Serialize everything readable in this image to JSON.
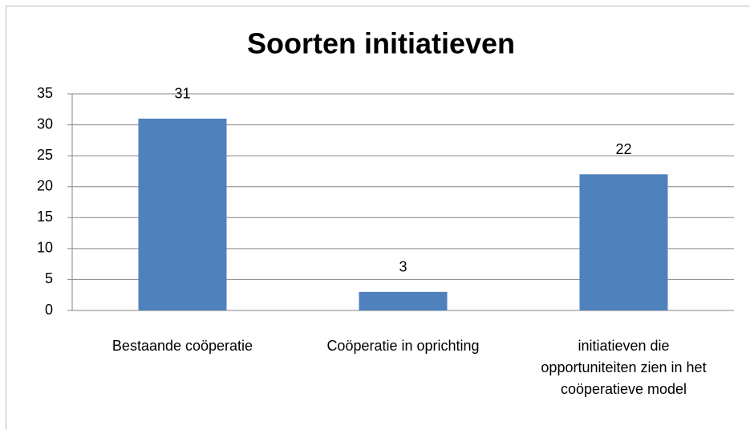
{
  "chart_data": {
    "type": "bar",
    "title": "Soorten initiatieven",
    "categories": [
      "Bestaande coöperatie",
      "Coöperatie in oprichting",
      "initiatieven die opportuniteiten zien in het coöperatieve model"
    ],
    "values": [
      31,
      3,
      22
    ],
    "color": "#4f81bd",
    "ylim": [
      0,
      35
    ],
    "yticks": [
      0,
      5,
      10,
      15,
      20,
      25,
      30,
      35
    ],
    "grid": true
  }
}
